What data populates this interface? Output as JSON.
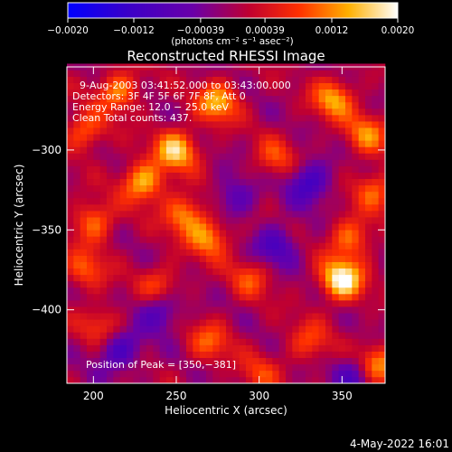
{
  "chart_data": {
    "type": "heatmap",
    "title": "Reconstructed RHESSI Image",
    "xlabel": "Heliocentric X (arcsec)",
    "ylabel": "Heliocentric Y (arcsec)",
    "xlim": [
      184,
      376
    ],
    "ylim": [
      -446,
      -248
    ],
    "x_ticks": [
      200,
      250,
      300,
      350
    ],
    "x_tick_labels": [
      "200",
      "250",
      "300",
      "350"
    ],
    "y_ticks": [
      -300,
      -350,
      -400
    ],
    "y_tick_labels": [
      "−300",
      "−350",
      "−400"
    ],
    "colorbar": {
      "label": "(photons cm⁻² s⁻¹ asec⁻²)",
      "range": [
        -0.002,
        0.002
      ],
      "ticks": [
        -0.002,
        -0.0012,
        -0.00039,
        0.00039,
        0.0012,
        0.002
      ],
      "tick_labels": [
        "−0.0020",
        "−0.0012",
        "−0.00039",
        "0.00039",
        "0.0012",
        "0.0020"
      ],
      "colormap": "blue-purple-red-yellow-white"
    },
    "annotations": {
      "time_range": "9‑Aug‑2003 03:41:52.000 to 03:43:00.000",
      "detectors": "Detectors: 3F 4F 5F 6F 7F 8F, Att 0",
      "energy_range": "Energy Range: 12.0 − 25.0 keV",
      "clean": "Clean     Total counts: 437.",
      "peak": "Position of Peak = [350,−381]"
    },
    "grid": false,
    "hot_spots": [
      {
        "x": 215,
        "y": -263,
        "value": 0.0012
      },
      {
        "x": 195,
        "y": -288,
        "value": 0.001
      },
      {
        "x": 250,
        "y": -300,
        "value": 0.0016
      },
      {
        "x": 275,
        "y": -270,
        "value": 0.0014
      },
      {
        "x": 345,
        "y": -268,
        "value": 0.0013
      },
      {
        "x": 365,
        "y": -290,
        "value": 0.0011
      },
      {
        "x": 230,
        "y": -320,
        "value": 0.0015
      },
      {
        "x": 255,
        "y": -340,
        "value": 0.0012
      },
      {
        "x": 200,
        "y": -345,
        "value": 0.0011
      },
      {
        "x": 310,
        "y": -305,
        "value": 0.0008
      },
      {
        "x": 370,
        "y": -325,
        "value": 0.001
      },
      {
        "x": 270,
        "y": -355,
        "value": 0.0012
      },
      {
        "x": 195,
        "y": -375,
        "value": 0.0009
      },
      {
        "x": 240,
        "y": -385,
        "value": 0.0009
      },
      {
        "x": 295,
        "y": -380,
        "value": 0.0008
      },
      {
        "x": 350,
        "y": -381,
        "value": 0.002
      },
      {
        "x": 355,
        "y": -355,
        "value": 0.0011
      },
      {
        "x": 205,
        "y": -410,
        "value": 0.0008
      },
      {
        "x": 270,
        "y": -420,
        "value": 0.0009
      },
      {
        "x": 330,
        "y": -420,
        "value": 0.0008
      },
      {
        "x": 370,
        "y": -435,
        "value": 0.0015
      },
      {
        "x": 300,
        "y": -440,
        "value": 0.0007
      }
    ],
    "cold_spots": [
      {
        "x": 330,
        "y": -320,
        "value": -0.0012
      },
      {
        "x": 310,
        "y": -360,
        "value": -0.001
      },
      {
        "x": 240,
        "y": -400,
        "value": -0.001
      },
      {
        "x": 215,
        "y": -425,
        "value": -0.0011
      },
      {
        "x": 360,
        "y": -440,
        "value": -0.0012
      },
      {
        "x": 285,
        "y": -330,
        "value": -0.0008
      }
    ]
  },
  "footer": {
    "date": "4‑May‑2022 16:01"
  }
}
